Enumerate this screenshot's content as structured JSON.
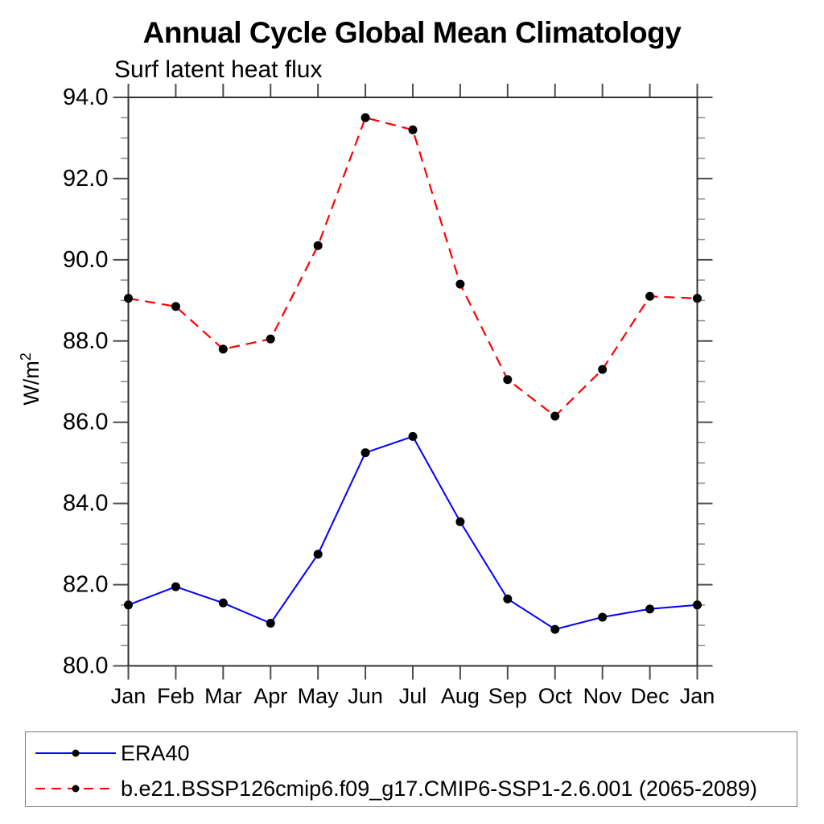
{
  "chart_data": {
    "type": "line",
    "title": "Annual Cycle Global Mean Climatology",
    "subtitle": "Surf latent heat flux",
    "ylabel_base": "W/m",
    "ylabel_exponent": "2",
    "x_tick_labels": [
      "Jan",
      "Feb",
      "Mar",
      "Apr",
      "May",
      "Jun",
      "Jul",
      "Aug",
      "Sep",
      "Oct",
      "Nov",
      "Dec",
      "Jan"
    ],
    "ylim": [
      80.0,
      94.0
    ],
    "y_major_step": 2.0,
    "y_minor_step": 0.5,
    "y_tick_labels": [
      "80.0",
      "82.0",
      "84.0",
      "86.0",
      "88.0",
      "90.0",
      "92.0",
      "94.0"
    ],
    "grid": false,
    "legend_position": "bottom-left-box",
    "marker": {
      "shape": "filled-circle",
      "color": "#000000"
    },
    "series": [
      {
        "name": "ERA40",
        "color": "#0000ff",
        "style": "solid",
        "values": [
          81.5,
          81.95,
          81.55,
          81.05,
          82.75,
          85.25,
          85.65,
          83.55,
          81.65,
          80.9,
          81.2,
          81.4,
          81.5
        ]
      },
      {
        "name": "b.e21.BSSP126cmip6.f09_g17.CMIP6-SSP1-2.6.001 (2065-2089)",
        "color": "#ff0000",
        "style": "dashed",
        "values": [
          89.05,
          88.85,
          87.8,
          88.05,
          90.35,
          93.5,
          93.2,
          89.4,
          87.05,
          86.15,
          87.3,
          89.1,
          89.05
        ]
      }
    ],
    "axis_colors": {
      "frame": "#333333",
      "major_tick": "#4d4d4d",
      "minor_tick": "#909090"
    }
  }
}
